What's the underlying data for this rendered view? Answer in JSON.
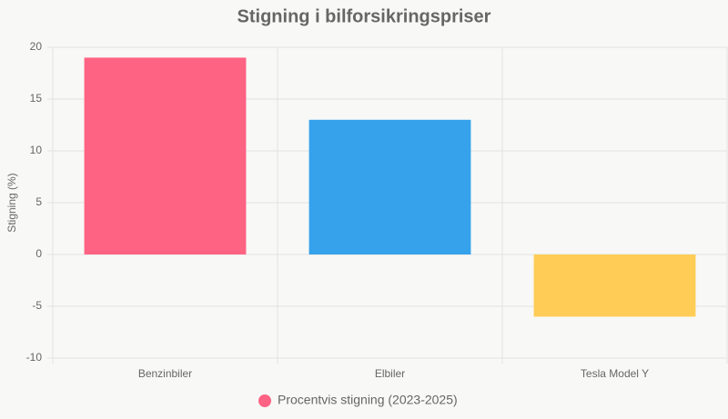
{
  "chart_data": {
    "type": "bar",
    "title": "Stigning i bilforsikringspriser",
    "y_label": "Stigning (%)",
    "categories": [
      "Benzinbiler",
      "Elbiler",
      "Tesla Model Y"
    ],
    "series": [
      {
        "name": "Procentvis stigning (2023-2025)",
        "colors": [
          "#ff6384",
          "#36a2eb",
          "#ffcd56"
        ],
        "values": [
          19,
          13,
          -6
        ]
      }
    ],
    "ylim": [
      -10,
      20
    ],
    "yticks": [
      -10,
      -5,
      0,
      5,
      10,
      15,
      20
    ],
    "grid": true,
    "legend": "bottom"
  }
}
